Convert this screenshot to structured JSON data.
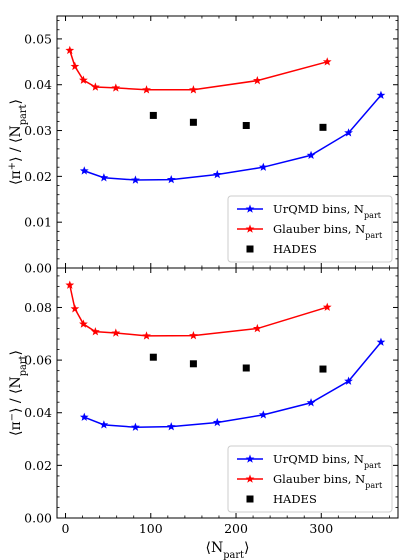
{
  "chart_data": [
    {
      "type": "line",
      "ylabel_main": "⟨π",
      "ylabel_sup": "+",
      "ylabel_rest": "⟩ / ⟨N",
      "ylabel_sub": "part",
      "ylabel_end": "⟩",
      "xlim": [
        -10,
        390
      ],
      "ylim": [
        0.0,
        0.055
      ],
      "yticks": [
        0.0,
        0.01,
        0.02,
        0.03,
        0.04,
        0.05
      ],
      "ytick_labels": [
        "0.00",
        "0.01",
        "0.02",
        "0.03",
        "0.04",
        "0.05"
      ],
      "series": [
        {
          "name": "UrQMD bins, N",
          "name_sub": "part",
          "color": "#0000ff",
          "marker": "star",
          "x": [
            22,
            45,
            82,
            124,
            178,
            232,
            288,
            332,
            370
          ],
          "y": [
            0.0212,
            0.0197,
            0.0192,
            0.0193,
            0.0204,
            0.022,
            0.0246,
            0.0295,
            0.0377
          ]
        },
        {
          "name": "Glauber bins, N",
          "name_sub": "part",
          "color": "#ff0000",
          "marker": "star",
          "x": [
            5,
            11,
            21,
            35,
            59,
            95,
            150,
            225,
            307
          ],
          "y": [
            0.0475,
            0.044,
            0.041,
            0.0395,
            0.0393,
            0.0389,
            0.0389,
            0.0409,
            0.045
          ]
        },
        {
          "name": "HADES",
          "color": "#000000",
          "marker": "square",
          "x": [
            103,
            150,
            212,
            302
          ],
          "y": [
            0.0333,
            0.0318,
            0.0311,
            0.0307
          ]
        }
      ],
      "legend_position": "lower-right"
    },
    {
      "type": "line",
      "ylabel_main": "⟨π",
      "ylabel_sup": "−",
      "ylabel_rest": "⟩ / ⟨N",
      "ylabel_sub": "part",
      "ylabel_end": "⟩",
      "xlabel_main": "⟨N",
      "xlabel_sub": "part",
      "xlabel_end": "⟩",
      "xlim": [
        -10,
        390
      ],
      "ylim": [
        0.0,
        0.095
      ],
      "yticks": [
        0.0,
        0.02,
        0.04,
        0.06,
        0.08
      ],
      "ytick_labels": [
        "0.00",
        "0.02",
        "0.04",
        "0.06",
        "0.08"
      ],
      "xticks": [
        0,
        100,
        200,
        300
      ],
      "xtick_labels": [
        "0",
        "100",
        "200",
        "300"
      ],
      "series": [
        {
          "name": "UrQMD bins, N",
          "name_sub": "part",
          "color": "#0000ff",
          "marker": "star",
          "x": [
            22,
            45,
            82,
            124,
            178,
            232,
            288,
            332,
            370
          ],
          "y": [
            0.0383,
            0.0354,
            0.0345,
            0.0347,
            0.0363,
            0.0392,
            0.0438,
            0.052,
            0.0668
          ]
        },
        {
          "name": "Glauber bins, N",
          "name_sub": "part",
          "color": "#ff0000",
          "marker": "star",
          "x": [
            5,
            11,
            21,
            35,
            59,
            95,
            150,
            225,
            307
          ],
          "y": [
            0.0885,
            0.0795,
            0.0737,
            0.0708,
            0.0703,
            0.0692,
            0.0693,
            0.072,
            0.0801
          ]
        },
        {
          "name": "HADES",
          "color": "#000000",
          "marker": "square",
          "x": [
            103,
            150,
            212,
            302
          ],
          "y": [
            0.0611,
            0.0586,
            0.057,
            0.0566
          ]
        }
      ],
      "legend_position": "lower-right"
    }
  ]
}
